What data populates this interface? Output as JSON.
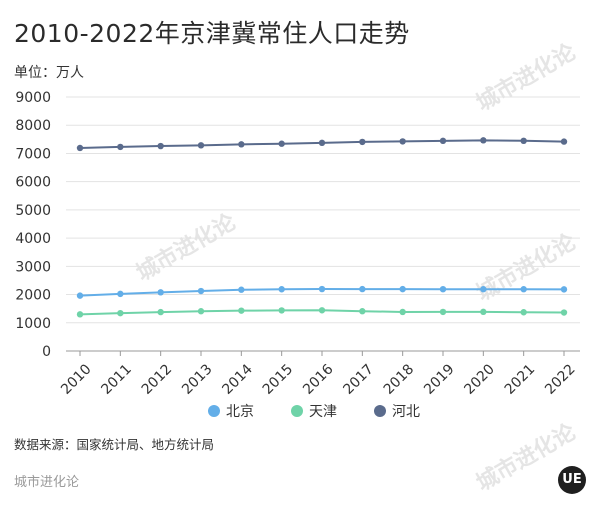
{
  "title": "2010-2022年京津冀常住人口走势",
  "unit_label": "单位：万人",
  "source_note": "数据来源：国家统计局、地方统计局",
  "brand": {
    "footer": "城市进化论",
    "logo_text": "UE",
    "watermark": "城市进化论"
  },
  "colors": {
    "grid": "#e3e3e3",
    "axis_text": "#333333",
    "beijing": "#63aee8",
    "tianjin": "#6fd3a8",
    "hebei": "#5a6b8c"
  },
  "chart_data": {
    "type": "line",
    "x": [
      "2010",
      "2011",
      "2012",
      "2013",
      "2014",
      "2015",
      "2016",
      "2017",
      "2018",
      "2019",
      "2020",
      "2021",
      "2022"
    ],
    "ylim": [
      0,
      9000
    ],
    "yticks": [
      "0",
      "1000",
      "2000",
      "3000",
      "4000",
      "5000",
      "6000",
      "7000",
      "8000",
      "9000"
    ],
    "grid": true,
    "legend_position": "bottom",
    "series": [
      {
        "name": "北京",
        "color": "#63aee8",
        "values": [
          1962,
          2024,
          2078,
          2125,
          2171,
          2188,
          2195,
          2194,
          2192,
          2190,
          2189,
          2189,
          2184
        ]
      },
      {
        "name": "天津",
        "color": "#6fd3a8",
        "values": [
          1299,
          1341,
          1378,
          1410,
          1429,
          1439,
          1443,
          1410,
          1383,
          1385,
          1387,
          1373,
          1363
        ]
      },
      {
        "name": "河北",
        "color": "#5a6b8c",
        "values": [
          7194,
          7232,
          7262,
          7288,
          7323,
          7345,
          7375,
          7409,
          7426,
          7447,
          7464,
          7448,
          7420
        ]
      }
    ]
  }
}
